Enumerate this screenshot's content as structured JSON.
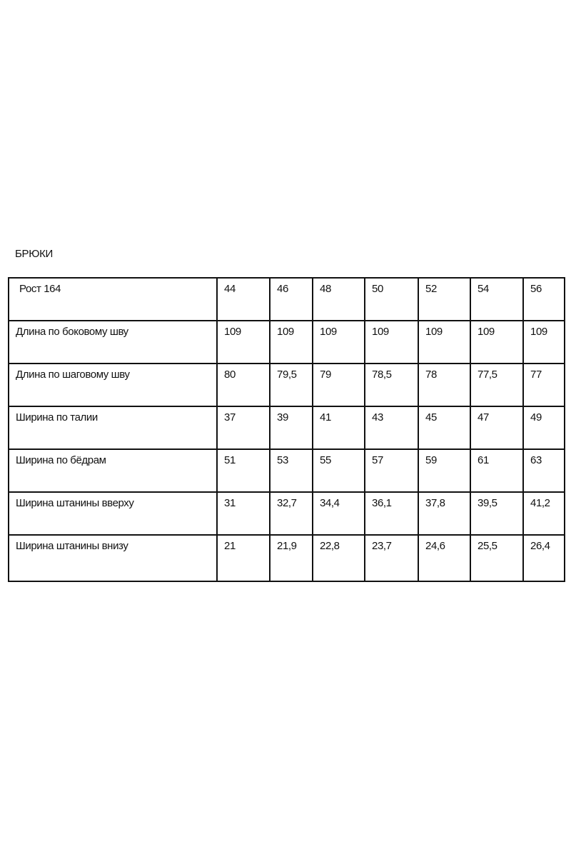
{
  "title": "БРЮКИ",
  "table": {
    "header": {
      "label": "Рост 164",
      "sizes": [
        "44",
        "46",
        "48",
        "50",
        "52",
        "54",
        "56"
      ]
    },
    "rows": [
      {
        "label": "Длина по боковому шву",
        "values": [
          "109",
          "109",
          "109",
          "109",
          "109",
          "109",
          "109"
        ]
      },
      {
        "label": "Длина по шаговому шву",
        "values": [
          "80",
          "79,5",
          "79",
          "78,5",
          "78",
          "77,5",
          "77"
        ]
      },
      {
        "label": "Ширина по талии",
        "values": [
          "37",
          "39",
          "41",
          "43",
          "45",
          "47",
          "49"
        ]
      },
      {
        "label": "Ширина по бёдрам",
        "values": [
          "51",
          "53",
          "55",
          "57",
          "59",
          "61",
          "63"
        ]
      },
      {
        "label": "Ширина штанины вверху",
        "values": [
          "31",
          "32,7",
          "34,4",
          "36,1",
          "37,8",
          "39,5",
          "41,2"
        ]
      },
      {
        "label": "Ширина штанины внизу",
        "values": [
          "21",
          "21,9",
          "22,8",
          "23,7",
          "24,6",
          "25,5",
          "26,4"
        ]
      }
    ]
  }
}
